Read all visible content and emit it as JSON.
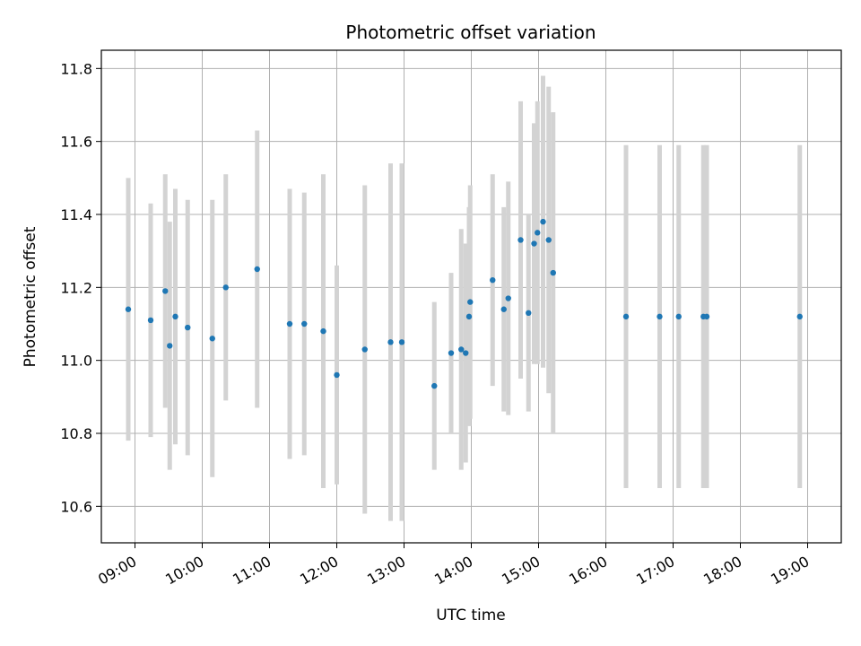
{
  "chart_data": {
    "type": "scatter",
    "title": "Photometric offset variation",
    "xlabel": "UTC time",
    "ylabel": "Photometric offset",
    "grid": true,
    "xlim": [
      "08:30",
      "19:30"
    ],
    "ylim": [
      10.5,
      11.85
    ],
    "xticks": [
      "09:00",
      "10:00",
      "11:00",
      "12:00",
      "13:00",
      "14:00",
      "15:00",
      "16:00",
      "17:00",
      "18:00",
      "19:00"
    ],
    "yticks": [
      "10.6",
      "10.8",
      "11.0",
      "11.2",
      "11.4",
      "11.6",
      "11.8"
    ],
    "series": [
      {
        "marker_color": "#1f77b4",
        "errorbar_color": "#d3d3d3",
        "points": [
          {
            "x": "08:54",
            "y": 11.14,
            "err": 0.36
          },
          {
            "x": "09:14",
            "y": 11.11,
            "err": 0.32
          },
          {
            "x": "09:27",
            "y": 11.19,
            "err": 0.32
          },
          {
            "x": "09:31",
            "y": 11.04,
            "err": 0.34
          },
          {
            "x": "09:36",
            "y": 11.12,
            "err": 0.35
          },
          {
            "x": "09:47",
            "y": 11.09,
            "err": 0.35
          },
          {
            "x": "10:09",
            "y": 11.06,
            "err": 0.38
          },
          {
            "x": "10:21",
            "y": 11.2,
            "err": 0.31
          },
          {
            "x": "10:49",
            "y": 11.25,
            "err": 0.38
          },
          {
            "x": "11:18",
            "y": 11.1,
            "err": 0.37
          },
          {
            "x": "11:31",
            "y": 11.1,
            "err": 0.36
          },
          {
            "x": "11:48",
            "y": 11.08,
            "err": 0.43
          },
          {
            "x": "12:00",
            "y": 10.96,
            "err": 0.3
          },
          {
            "x": "12:25",
            "y": 11.03,
            "err": 0.45
          },
          {
            "x": "12:48",
            "y": 11.05,
            "err": 0.49
          },
          {
            "x": "12:58",
            "y": 11.05,
            "err": 0.49
          },
          {
            "x": "13:27",
            "y": 10.93,
            "err": 0.23
          },
          {
            "x": "13:42",
            "y": 11.02,
            "err": 0.22
          },
          {
            "x": "13:51",
            "y": 11.03,
            "err": 0.33
          },
          {
            "x": "13:55",
            "y": 11.02,
            "err": 0.3
          },
          {
            "x": "13:58",
            "y": 11.12,
            "err": 0.3
          },
          {
            "x": "13:59",
            "y": 11.16,
            "err": 0.32
          },
          {
            "x": "14:19",
            "y": 11.22,
            "err": 0.29
          },
          {
            "x": "14:29",
            "y": 11.14,
            "err": 0.28
          },
          {
            "x": "14:33",
            "y": 11.17,
            "err": 0.32
          },
          {
            "x": "14:44",
            "y": 11.33,
            "err": 0.38
          },
          {
            "x": "14:51",
            "y": 11.13,
            "err": 0.27
          },
          {
            "x": "14:56",
            "y": 11.32,
            "err": 0.33
          },
          {
            "x": "14:59",
            "y": 11.35,
            "err": 0.36
          },
          {
            "x": "15:04",
            "y": 11.38,
            "err": 0.4
          },
          {
            "x": "15:09",
            "y": 11.33,
            "err": 0.42
          },
          {
            "x": "15:13",
            "y": 11.24,
            "err": 0.44
          },
          {
            "x": "16:18",
            "y": 11.12,
            "err": 0.47
          },
          {
            "x": "16:48",
            "y": 11.12,
            "err": 0.47
          },
          {
            "x": "17:05",
            "y": 11.12,
            "err": 0.47
          },
          {
            "x": "17:27",
            "y": 11.12,
            "err": 0.47
          },
          {
            "x": "17:30",
            "y": 11.12,
            "err": 0.47
          },
          {
            "x": "18:53",
            "y": 11.12,
            "err": 0.47
          }
        ]
      }
    ]
  }
}
